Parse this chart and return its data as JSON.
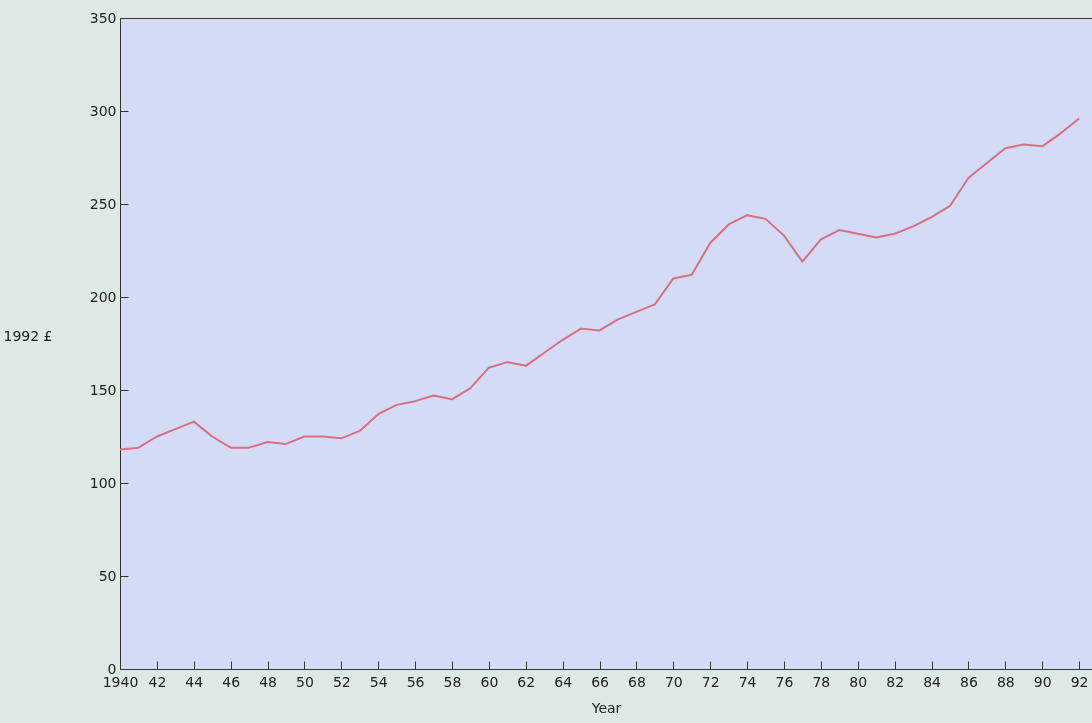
{
  "chart_data": {
    "type": "line",
    "xlabel": "Year",
    "ylabel": "1992 £",
    "x": [
      1940,
      1941,
      1942,
      1943,
      1944,
      1945,
      1946,
      1947,
      1948,
      1949,
      1950,
      1951,
      1952,
      1953,
      1954,
      1955,
      1956,
      1957,
      1958,
      1959,
      1960,
      1961,
      1962,
      1963,
      1964,
      1965,
      1966,
      1967,
      1968,
      1969,
      1970,
      1971,
      1972,
      1973,
      1974,
      1975,
      1976,
      1977,
      1978,
      1979,
      1980,
      1981,
      1982,
      1983,
      1984,
      1985,
      1986,
      1987,
      1988,
      1989,
      1990,
      1991,
      1992
    ],
    "series": [
      {
        "color": "#d9707f",
        "values": [
          118,
          119,
          125,
          129,
          133,
          125,
          119,
          119,
          122,
          121,
          125,
          125,
          124,
          128,
          137,
          142,
          144,
          147,
          145,
          151,
          162,
          165,
          163,
          170,
          177,
          183,
          182,
          188,
          192,
          196,
          210,
          212,
          229,
          239,
          244,
          242,
          233,
          219,
          231,
          236,
          234,
          232,
          234,
          238,
          243,
          249,
          264,
          272,
          280,
          282,
          281,
          288,
          296
        ]
      }
    ],
    "xlim": [
      1940,
      1992.7
    ],
    "xticks": [
      1940,
      {
        "value": 1942,
        "label": "42"
      },
      {
        "value": 1944,
        "label": "44"
      },
      {
        "value": 1946,
        "label": "46"
      },
      {
        "value": 1948,
        "label": "48"
      },
      {
        "value": 1950,
        "label": "50"
      },
      {
        "value": 1952,
        "label": "52"
      },
      {
        "value": 1954,
        "label": "54"
      },
      {
        "value": 1956,
        "label": "56"
      },
      {
        "value": 1958,
        "label": "58"
      },
      {
        "value": 1960,
        "label": "60"
      },
      {
        "value": 1962,
        "label": "62"
      },
      {
        "value": 1964,
        "label": "64"
      },
      {
        "value": 1966,
        "label": "66"
      },
      {
        "value": 1968,
        "label": "68"
      },
      {
        "value": 1970,
        "label": "70"
      },
      {
        "value": 1972,
        "label": "72"
      },
      {
        "value": 1974,
        "label": "74"
      },
      {
        "value": 1976,
        "label": "76"
      },
      {
        "value": 1978,
        "label": "78"
      },
      {
        "value": 1980,
        "label": "80"
      },
      {
        "value": 1982,
        "label": "82"
      },
      {
        "value": 1984,
        "label": "84"
      },
      {
        "value": 1986,
        "label": "86"
      },
      {
        "value": 1988,
        "label": "88"
      },
      {
        "value": 1990,
        "label": "90"
      },
      {
        "value": 1992,
        "label": "92"
      }
    ],
    "ylim": [
      0,
      350
    ],
    "yticks": [
      0,
      50,
      100,
      150,
      200,
      250,
      300,
      350
    ],
    "grid": false,
    "marker": "none",
    "line_style": "solid"
  }
}
